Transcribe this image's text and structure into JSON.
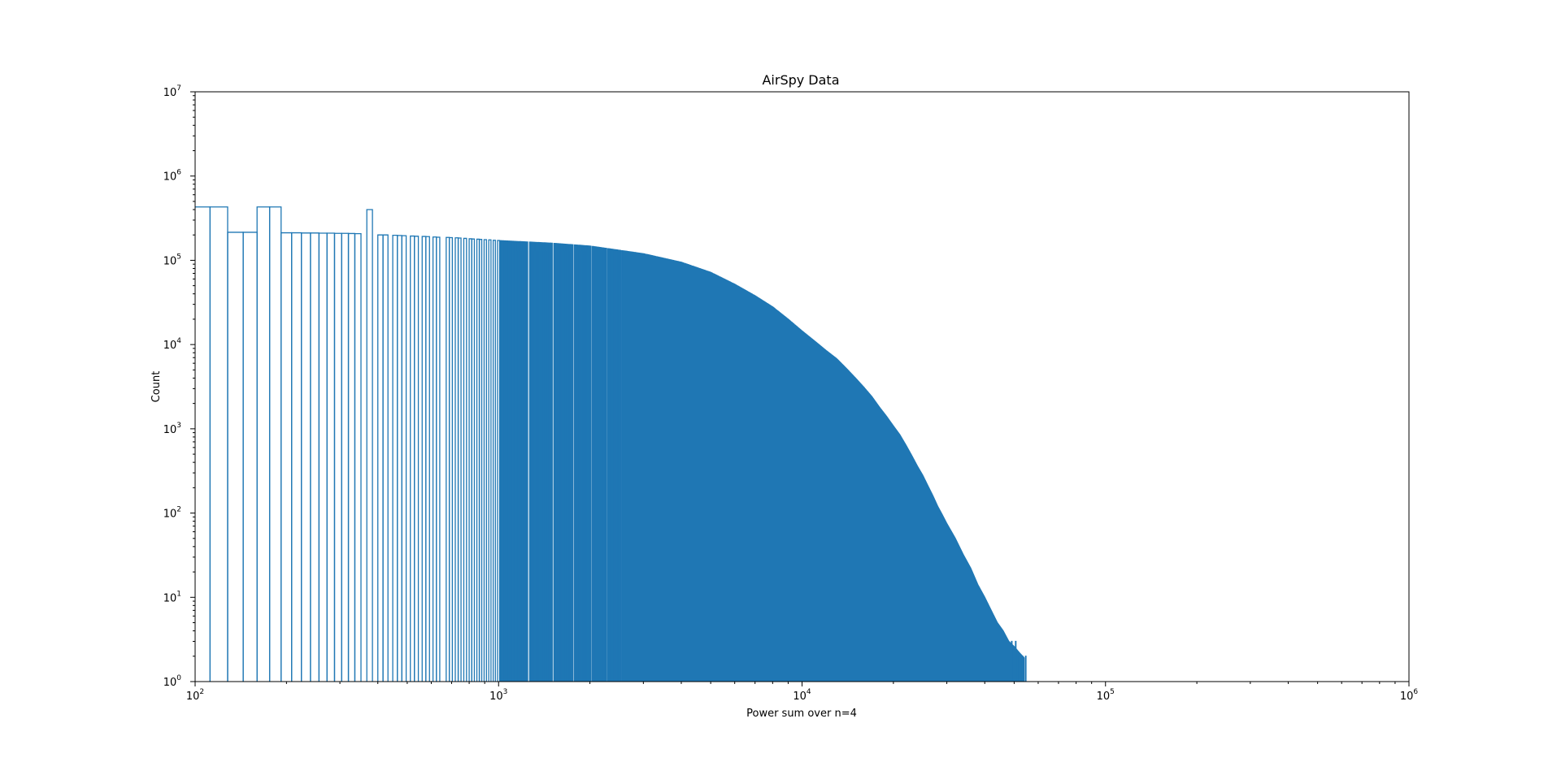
{
  "chart_data": {
    "type": "histogram",
    "title": "AirSpy Data",
    "xlabel": "Power sum over n=4",
    "ylabel": "Count",
    "xscale": "log",
    "yscale": "log",
    "xlim": [
      100,
      1000000
    ],
    "ylim": [
      1,
      10000000
    ],
    "grid": false,
    "legend": "none",
    "histtype": "step",
    "color": "#1f77b4",
    "x_ticks": [
      {
        "value": 100,
        "base": "10",
        "exp": "2"
      },
      {
        "value": 1000,
        "base": "10",
        "exp": "3"
      },
      {
        "value": 10000,
        "base": "10",
        "exp": "4"
      },
      {
        "value": 100000,
        "base": "10",
        "exp": "5"
      },
      {
        "value": 1000000,
        "base": "10",
        "exp": "6"
      }
    ],
    "y_ticks": [
      {
        "value": 1,
        "base": "10",
        "exp": "0"
      },
      {
        "value": 10,
        "base": "10",
        "exp": "1"
      },
      {
        "value": 100,
        "base": "10",
        "exp": "2"
      },
      {
        "value": 1000,
        "base": "10",
        "exp": "3"
      },
      {
        "value": 10000,
        "base": "10",
        "exp": "4"
      },
      {
        "value": 100000,
        "base": "10",
        "exp": "5"
      },
      {
        "value": 1000000,
        "base": "10",
        "exp": "6"
      },
      {
        "value": 10000000,
        "base": "10",
        "exp": "7"
      }
    ],
    "bin_width": 16,
    "bins_start": 96,
    "bins": [
      [
        96,
        112,
        430000
      ],
      [
        112,
        128,
        430000
      ],
      [
        128,
        144,
        215000
      ],
      [
        144,
        160,
        215000
      ],
      [
        160,
        176,
        430000
      ],
      [
        176,
        192,
        430000
      ],
      [
        192,
        208,
        212000
      ],
      [
        208,
        224,
        212000
      ],
      [
        224,
        240,
        211000
      ],
      [
        240,
        256,
        211000
      ],
      [
        256,
        272,
        210000
      ],
      [
        272,
        288,
        210000
      ],
      [
        288,
        304,
        209000
      ],
      [
        304,
        320,
        209000
      ],
      [
        320,
        336,
        208000
      ],
      [
        336,
        352,
        207000
      ],
      [
        352,
        368,
        0
      ],
      [
        368,
        384,
        400000
      ],
      [
        384,
        400,
        0
      ],
      [
        400,
        416,
        200000
      ],
      [
        416,
        432,
        200000
      ],
      [
        432,
        448,
        0
      ],
      [
        448,
        464,
        198000
      ],
      [
        464,
        480,
        197000
      ],
      [
        480,
        496,
        196000
      ],
      [
        496,
        512,
        0
      ],
      [
        512,
        528,
        194000
      ],
      [
        528,
        544,
        193000
      ],
      [
        544,
        560,
        0
      ],
      [
        560,
        576,
        192000
      ],
      [
        576,
        592,
        191000
      ],
      [
        592,
        608,
        0
      ],
      [
        608,
        624,
        189000
      ],
      [
        624,
        640,
        188000
      ],
      [
        640,
        656,
        0
      ],
      [
        656,
        672,
        0
      ],
      [
        672,
        688,
        187000
      ],
      [
        688,
        704,
        186000
      ],
      [
        704,
        720,
        0
      ],
      [
        720,
        736,
        185000
      ],
      [
        736,
        752,
        184000
      ],
      [
        752,
        768,
        0
      ],
      [
        768,
        784,
        182000
      ],
      [
        784,
        800,
        0
      ],
      [
        800,
        816,
        180000
      ],
      [
        816,
        832,
        179000
      ],
      [
        832,
        848,
        0
      ],
      [
        848,
        864,
        178000
      ],
      [
        864,
        880,
        177000
      ],
      [
        880,
        896,
        0
      ],
      [
        896,
        912,
        176000
      ],
      [
        912,
        928,
        0
      ],
      [
        928,
        944,
        175000
      ],
      [
        944,
        960,
        0
      ],
      [
        960,
        976,
        173000
      ],
      [
        976,
        992,
        0
      ],
      [
        992,
        1008,
        172000
      ]
    ],
    "curve": [
      [
        1000,
        172000
      ],
      [
        1500,
        160000
      ],
      [
        2000,
        148000
      ],
      [
        3000,
        120000
      ],
      [
        4000,
        95000
      ],
      [
        5000,
        72000
      ],
      [
        6000,
        52000
      ],
      [
        7000,
        38000
      ],
      [
        8000,
        28000
      ],
      [
        9000,
        20000
      ],
      [
        10000,
        14500
      ],
      [
        11000,
        11000
      ],
      [
        12000,
        8500
      ],
      [
        13000,
        6800
      ],
      [
        14000,
        5200
      ],
      [
        15000,
        4000
      ],
      [
        16000,
        3100
      ],
      [
        17000,
        2400
      ],
      [
        18000,
        1800
      ],
      [
        19000,
        1400
      ],
      [
        20000,
        1080
      ],
      [
        21000,
        850
      ],
      [
        22000,
        640
      ],
      [
        23000,
        480
      ],
      [
        24000,
        360
      ],
      [
        25000,
        280
      ],
      [
        26000,
        210
      ],
      [
        27000,
        160
      ],
      [
        28000,
        120
      ],
      [
        29000,
        95
      ],
      [
        30000,
        75
      ],
      [
        32000,
        50
      ],
      [
        34000,
        32
      ],
      [
        36000,
        22
      ],
      [
        38000,
        14
      ],
      [
        40000,
        10
      ],
      [
        42000,
        7
      ],
      [
        44000,
        5
      ],
      [
        46000,
        4
      ],
      [
        48000,
        3
      ],
      [
        50000,
        2.6
      ],
      [
        52000,
        2.2
      ],
      [
        54000,
        1.9
      ]
    ],
    "gap_every": 16,
    "isolated_bins": [
      [
        49000,
        3
      ],
      [
        50500,
        3
      ],
      [
        51800,
        2
      ],
      [
        53200,
        2
      ],
      [
        54500,
        2
      ]
    ]
  }
}
